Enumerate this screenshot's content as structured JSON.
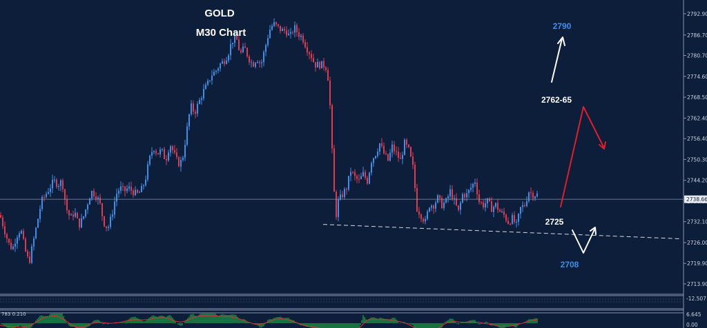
{
  "chart_data": {
    "type": "candlestick",
    "title": "GOLD",
    "subtitle": "M30 Chart",
    "price_axis": {
      "ticks": [
        2792.9,
        2786.7,
        2780.7,
        2774.6,
        2768.5,
        2762.4,
        2756.4,
        2750.3,
        2744.2,
        2738.1,
        2732.1,
        2726.0,
        2719.9,
        2713.9
      ],
      "tick_labels": [
        "2792.90",
        "2786.70",
        "2780.70",
        "2774.60",
        "2768.50",
        "2762.40",
        "2756.40",
        "2750.30",
        "2744.20",
        "2738.10",
        "2732.10",
        "2726.00",
        "2719.90",
        "2713.90"
      ],
      "range": [
        2711.5,
        2795.5
      ],
      "current_price": 2738.66,
      "current_price_label": "2738.66"
    },
    "close_path": [
      [
        0,
        2734
      ],
      [
        6,
        2730
      ],
      [
        12,
        2726
      ],
      [
        18,
        2724
      ],
      [
        24,
        2728
      ],
      [
        30,
        2730
      ],
      [
        36,
        2724
      ],
      [
        42,
        2720
      ],
      [
        48,
        2726
      ],
      [
        54,
        2732
      ],
      [
        60,
        2738
      ],
      [
        66,
        2740
      ],
      [
        72,
        2742
      ],
      [
        78,
        2744
      ],
      [
        84,
        2743
      ],
      [
        90,
        2744
      ],
      [
        96,
        2736
      ],
      [
        102,
        2733
      ],
      [
        108,
        2735
      ],
      [
        114,
        2731
      ],
      [
        120,
        2733
      ],
      [
        126,
        2737
      ],
      [
        132,
        2741
      ],
      [
        138,
        2740
      ],
      [
        144,
        2738
      ],
      [
        150,
        2732
      ],
      [
        156,
        2730
      ],
      [
        162,
        2734
      ],
      [
        168,
        2740
      ],
      [
        174,
        2742
      ],
      [
        180,
        2741
      ],
      [
        186,
        2742
      ],
      [
        192,
        2741
      ],
      [
        198,
        2740
      ],
      [
        204,
        2741
      ],
      [
        210,
        2744
      ],
      [
        216,
        2750
      ],
      [
        222,
        2754
      ],
      [
        228,
        2752
      ],
      [
        234,
        2753
      ],
      [
        240,
        2750
      ],
      [
        246,
        2755
      ],
      [
        252,
        2752
      ],
      [
        258,
        2749
      ],
      [
        264,
        2750
      ],
      [
        270,
        2758
      ],
      [
        276,
        2766
      ],
      [
        282,
        2764
      ],
      [
        288,
        2767
      ],
      [
        294,
        2770
      ],
      [
        300,
        2772
      ],
      [
        306,
        2775
      ],
      [
        312,
        2776
      ],
      [
        318,
        2778
      ],
      [
        324,
        2779
      ],
      [
        330,
        2781
      ],
      [
        336,
        2785
      ],
      [
        342,
        2786
      ],
      [
        348,
        2781
      ],
      [
        354,
        2783
      ],
      [
        360,
        2780
      ],
      [
        366,
        2778
      ],
      [
        372,
        2780
      ],
      [
        378,
        2778
      ],
      [
        384,
        2783
      ],
      [
        390,
        2788
      ],
      [
        396,
        2790
      ],
      [
        402,
        2789
      ],
      [
        408,
        2788
      ],
      [
        414,
        2788
      ],
      [
        420,
        2786
      ],
      [
        426,
        2789
      ],
      [
        432,
        2787
      ],
      [
        438,
        2786
      ],
      [
        444,
        2783
      ],
      [
        450,
        2781
      ],
      [
        456,
        2778
      ],
      [
        462,
        2778
      ],
      [
        468,
        2778
      ],
      [
        474,
        2777
      ],
      [
        478,
        2766
      ],
      [
        482,
        2748
      ],
      [
        486,
        2733
      ],
      [
        490,
        2738
      ],
      [
        496,
        2740
      ],
      [
        502,
        2742
      ],
      [
        508,
        2747
      ],
      [
        514,
        2745
      ],
      [
        520,
        2744
      ],
      [
        526,
        2746
      ],
      [
        532,
        2744
      ],
      [
        538,
        2750
      ],
      [
        544,
        2752
      ],
      [
        550,
        2755
      ],
      [
        556,
        2752
      ],
      [
        562,
        2750
      ],
      [
        568,
        2754
      ],
      [
        574,
        2752
      ],
      [
        580,
        2750
      ],
      [
        586,
        2755
      ],
      [
        592,
        2753
      ],
      [
        598,
        2748
      ],
      [
        604,
        2736
      ],
      [
        610,
        2734
      ],
      [
        616,
        2732
      ],
      [
        622,
        2737
      ],
      [
        628,
        2737
      ],
      [
        634,
        2739
      ],
      [
        640,
        2737
      ],
      [
        646,
        2738
      ],
      [
        652,
        2741
      ],
      [
        658,
        2738
      ],
      [
        664,
        2735
      ],
      [
        670,
        2740
      ],
      [
        676,
        2740
      ],
      [
        682,
        2742
      ],
      [
        688,
        2744
      ],
      [
        694,
        2738
      ],
      [
        700,
        2737
      ],
      [
        706,
        2738
      ],
      [
        712,
        2736
      ],
      [
        718,
        2737
      ],
      [
        724,
        2735
      ],
      [
        730,
        2734
      ],
      [
        736,
        2732
      ],
      [
        742,
        2733
      ],
      [
        748,
        2731
      ],
      [
        754,
        2736
      ],
      [
        760,
        2737
      ],
      [
        766,
        2741
      ],
      [
        772,
        2740
      ],
      [
        778,
        2740
      ]
    ],
    "support_line": {
      "from": [
        468,
        2731.3
      ],
      "to": [
        985,
        2727.1
      ]
    },
    "annotations": {
      "label_2790": "2790",
      "label_2762_65": "2762-65",
      "label_2725": "2725",
      "label_2708": "2708"
    },
    "indicator": {
      "header": "783 0.210",
      "ticks": [
        "6.645",
        "0.00",
        "-12.507"
      ],
      "histogram_color": "#26c44a",
      "signal_color": "#e03030"
    },
    "colors": {
      "background": "#0c1e3a",
      "bull": "#3d8fe8",
      "bear": "#e03b4e",
      "arrow_up": "#ffffff",
      "arrow_down": "#e01e2a",
      "blue_label": "#3d8fe8"
    }
  }
}
